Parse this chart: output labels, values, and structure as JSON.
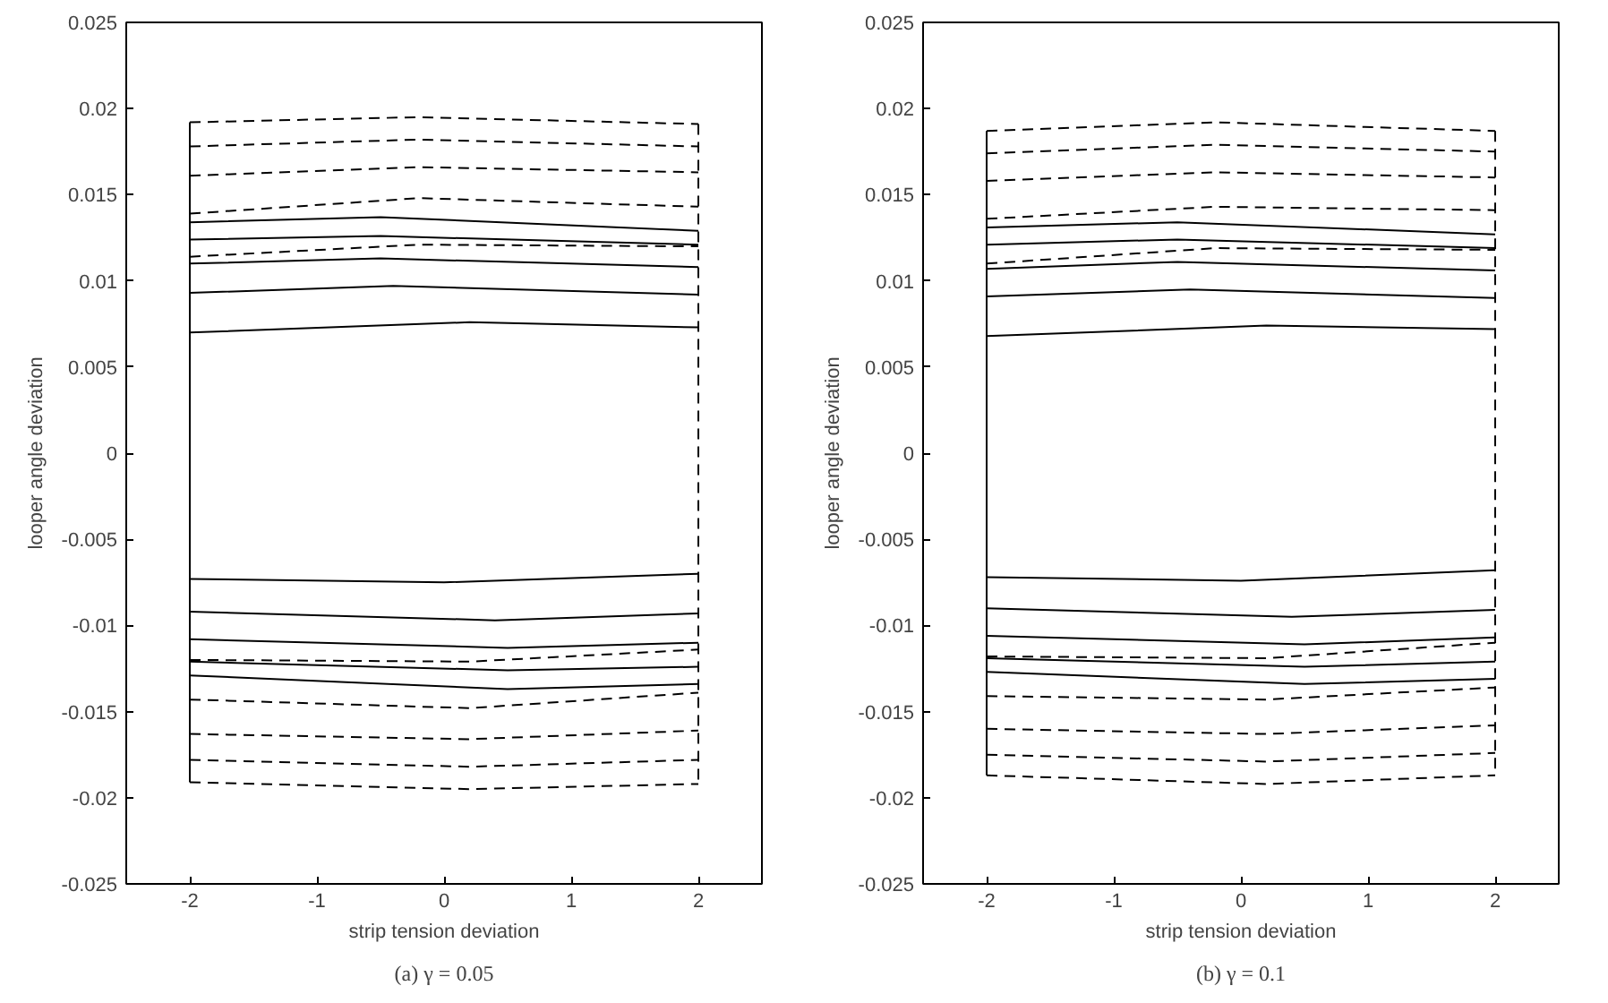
{
  "chart_data": [
    {
      "type": "line",
      "xlabel": "strip tension deviation",
      "ylabel": "looper angle deviation",
      "annotations": [
        "(a) γ = 0.05"
      ],
      "xlim": [
        -2.5,
        2.5
      ],
      "xticks": [
        -2,
        -1,
        0,
        1,
        2
      ],
      "ylim": [
        -0.025,
        0.025
      ],
      "yticks": [
        -0.025,
        -0.02,
        -0.015,
        -0.01,
        -0.005,
        0,
        0.005,
        0.01,
        0.015,
        0.02,
        0.025
      ],
      "grid": false,
      "series": [
        {
          "x": [
            -2,
            0.2,
            2
          ],
          "values": [
            0.007,
            0.0076,
            0.0073
          ],
          "color": "#000000",
          "line_style": "solid"
        },
        {
          "x": [
            -2,
            -0.4,
            2
          ],
          "values": [
            0.0093,
            0.0097,
            0.0092
          ],
          "color": "#000000",
          "line_style": "solid"
        },
        {
          "x": [
            -2,
            -0.5,
            2
          ],
          "values": [
            0.011,
            0.0113,
            0.0108
          ],
          "color": "#000000",
          "line_style": "solid"
        },
        {
          "x": [
            -2,
            -0.5,
            2
          ],
          "values": [
            0.0124,
            0.0126,
            0.0121
          ],
          "color": "#000000",
          "line_style": "solid"
        },
        {
          "x": [
            -2,
            -0.5,
            2
          ],
          "values": [
            0.0134,
            0.0137,
            0.0129
          ],
          "color": "#000000",
          "line_style": "solid"
        },
        {
          "x": [
            -2,
            -0.2,
            2
          ],
          "values": [
            0.0114,
            0.0121,
            0.012
          ],
          "color": "#000000",
          "line_style": "dashed"
        },
        {
          "x": [
            -2,
            -0.2,
            2
          ],
          "values": [
            0.0139,
            0.0148,
            0.0143
          ],
          "color": "#000000",
          "line_style": "dashed"
        },
        {
          "x": [
            -2,
            -0.2,
            2
          ],
          "values": [
            0.0161,
            0.0166,
            0.0163
          ],
          "color": "#000000",
          "line_style": "dashed"
        },
        {
          "x": [
            -2,
            -0.2,
            2
          ],
          "values": [
            0.0178,
            0.0182,
            0.0178
          ],
          "color": "#000000",
          "line_style": "dashed"
        },
        {
          "x": [
            -2,
            -0.2,
            2
          ],
          "values": [
            0.0192,
            0.0195,
            0.0191
          ],
          "color": "#000000",
          "line_style": "dashed"
        },
        {
          "x": [
            -2,
            0,
            2
          ],
          "values": [
            -0.0073,
            -0.0075,
            -0.007
          ],
          "color": "#000000",
          "line_style": "solid"
        },
        {
          "x": [
            -2,
            0.4,
            2
          ],
          "values": [
            -0.0092,
            -0.0097,
            -0.0093
          ],
          "color": "#000000",
          "line_style": "solid"
        },
        {
          "x": [
            -2,
            0.5,
            2
          ],
          "values": [
            -0.0108,
            -0.0113,
            -0.011
          ],
          "color": "#000000",
          "line_style": "solid"
        },
        {
          "x": [
            -2,
            0.5,
            2
          ],
          "values": [
            -0.0121,
            -0.0126,
            -0.0124
          ],
          "color": "#000000",
          "line_style": "solid"
        },
        {
          "x": [
            -2,
            0.5,
            2
          ],
          "values": [
            -0.0129,
            -0.0137,
            -0.0134
          ],
          "color": "#000000",
          "line_style": "solid"
        },
        {
          "x": [
            -2,
            0.2,
            2
          ],
          "values": [
            -0.012,
            -0.0121,
            -0.0114
          ],
          "color": "#000000",
          "line_style": "dashed"
        },
        {
          "x": [
            -2,
            0.2,
            2
          ],
          "values": [
            -0.0143,
            -0.0148,
            -0.0139
          ],
          "color": "#000000",
          "line_style": "dashed"
        },
        {
          "x": [
            -2,
            0.2,
            2
          ],
          "values": [
            -0.0163,
            -0.0166,
            -0.0161
          ],
          "color": "#000000",
          "line_style": "dashed"
        },
        {
          "x": [
            -2,
            0.2,
            2
          ],
          "values": [
            -0.0178,
            -0.0182,
            -0.0178
          ],
          "color": "#000000",
          "line_style": "dashed"
        },
        {
          "x": [
            -2,
            0.2,
            2
          ],
          "values": [
            -0.0191,
            -0.0195,
            -0.0192
          ],
          "color": "#000000",
          "line_style": "dashed"
        },
        {
          "x": [
            -2,
            -2
          ],
          "values": [
            0.0192,
            -0.0191
          ],
          "color": "#000000",
          "line_style": "solid"
        },
        {
          "x": [
            2,
            2
          ],
          "values": [
            0.0191,
            -0.0192
          ],
          "color": "#000000",
          "line_style": "dashed"
        }
      ]
    },
    {
      "type": "line",
      "xlabel": "strip tension deviation",
      "ylabel": "looper angle deviation",
      "annotations": [
        "(b) γ = 0.1"
      ],
      "xlim": [
        -2.5,
        2.5
      ],
      "xticks": [
        -2,
        -1,
        0,
        1,
        2
      ],
      "ylim": [
        -0.025,
        0.025
      ],
      "yticks": [
        -0.025,
        -0.02,
        -0.015,
        -0.01,
        -0.005,
        0,
        0.005,
        0.01,
        0.015,
        0.02,
        0.025
      ],
      "grid": false,
      "series": [
        {
          "x": [
            -2,
            0.2,
            2
          ],
          "values": [
            0.0068,
            0.0074,
            0.0072
          ],
          "color": "#000000",
          "line_style": "solid"
        },
        {
          "x": [
            -2,
            -0.4,
            2
          ],
          "values": [
            0.0091,
            0.0095,
            0.009
          ],
          "color": "#000000",
          "line_style": "solid"
        },
        {
          "x": [
            -2,
            -0.5,
            2
          ],
          "values": [
            0.0107,
            0.0111,
            0.0106
          ],
          "color": "#000000",
          "line_style": "solid"
        },
        {
          "x": [
            -2,
            -0.5,
            2
          ],
          "values": [
            0.0121,
            0.0124,
            0.0119
          ],
          "color": "#000000",
          "line_style": "solid"
        },
        {
          "x": [
            -2,
            -0.5,
            2
          ],
          "values": [
            0.0131,
            0.0134,
            0.0127
          ],
          "color": "#000000",
          "line_style": "solid"
        },
        {
          "x": [
            -2,
            -0.2,
            2
          ],
          "values": [
            0.011,
            0.0119,
            0.0118
          ],
          "color": "#000000",
          "line_style": "dashed"
        },
        {
          "x": [
            -2,
            -0.2,
            2
          ],
          "values": [
            0.0136,
            0.0143,
            0.0141
          ],
          "color": "#000000",
          "line_style": "dashed"
        },
        {
          "x": [
            -2,
            -0.2,
            2
          ],
          "values": [
            0.0158,
            0.0163,
            0.016
          ],
          "color": "#000000",
          "line_style": "dashed"
        },
        {
          "x": [
            -2,
            -0.2,
            2
          ],
          "values": [
            0.0174,
            0.0179,
            0.0175
          ],
          "color": "#000000",
          "line_style": "dashed"
        },
        {
          "x": [
            -2,
            -0.2,
            2
          ],
          "values": [
            0.0187,
            0.0192,
            0.0187
          ],
          "color": "#000000",
          "line_style": "dashed"
        },
        {
          "x": [
            -2,
            0,
            2
          ],
          "values": [
            -0.0072,
            -0.0074,
            -0.0068
          ],
          "color": "#000000",
          "line_style": "solid"
        },
        {
          "x": [
            -2,
            0.4,
            2
          ],
          "values": [
            -0.009,
            -0.0095,
            -0.0091
          ],
          "color": "#000000",
          "line_style": "solid"
        },
        {
          "x": [
            -2,
            0.5,
            2
          ],
          "values": [
            -0.0106,
            -0.0111,
            -0.0107
          ],
          "color": "#000000",
          "line_style": "solid"
        },
        {
          "x": [
            -2,
            0.5,
            2
          ],
          "values": [
            -0.0119,
            -0.0124,
            -0.0121
          ],
          "color": "#000000",
          "line_style": "solid"
        },
        {
          "x": [
            -2,
            0.5,
            2
          ],
          "values": [
            -0.0127,
            -0.0134,
            -0.0131
          ],
          "color": "#000000",
          "line_style": "solid"
        },
        {
          "x": [
            -2,
            0.2,
            2
          ],
          "values": [
            -0.0118,
            -0.0119,
            -0.011
          ],
          "color": "#000000",
          "line_style": "dashed"
        },
        {
          "x": [
            -2,
            0.2,
            2
          ],
          "values": [
            -0.0141,
            -0.0143,
            -0.0136
          ],
          "color": "#000000",
          "line_style": "dashed"
        },
        {
          "x": [
            -2,
            0.2,
            2
          ],
          "values": [
            -0.016,
            -0.0163,
            -0.0158
          ],
          "color": "#000000",
          "line_style": "dashed"
        },
        {
          "x": [
            -2,
            0.2,
            2
          ],
          "values": [
            -0.0175,
            -0.0179,
            -0.0174
          ],
          "color": "#000000",
          "line_style": "dashed"
        },
        {
          "x": [
            -2,
            0.2,
            2
          ],
          "values": [
            -0.0187,
            -0.0192,
            -0.0187
          ],
          "color": "#000000",
          "line_style": "dashed"
        },
        {
          "x": [
            -2,
            -2
          ],
          "values": [
            0.0187,
            -0.0187
          ],
          "color": "#000000",
          "line_style": "solid"
        },
        {
          "x": [
            2,
            2
          ],
          "values": [
            0.0187,
            -0.0187
          ],
          "color": "#000000",
          "line_style": "dashed"
        }
      ]
    }
  ]
}
